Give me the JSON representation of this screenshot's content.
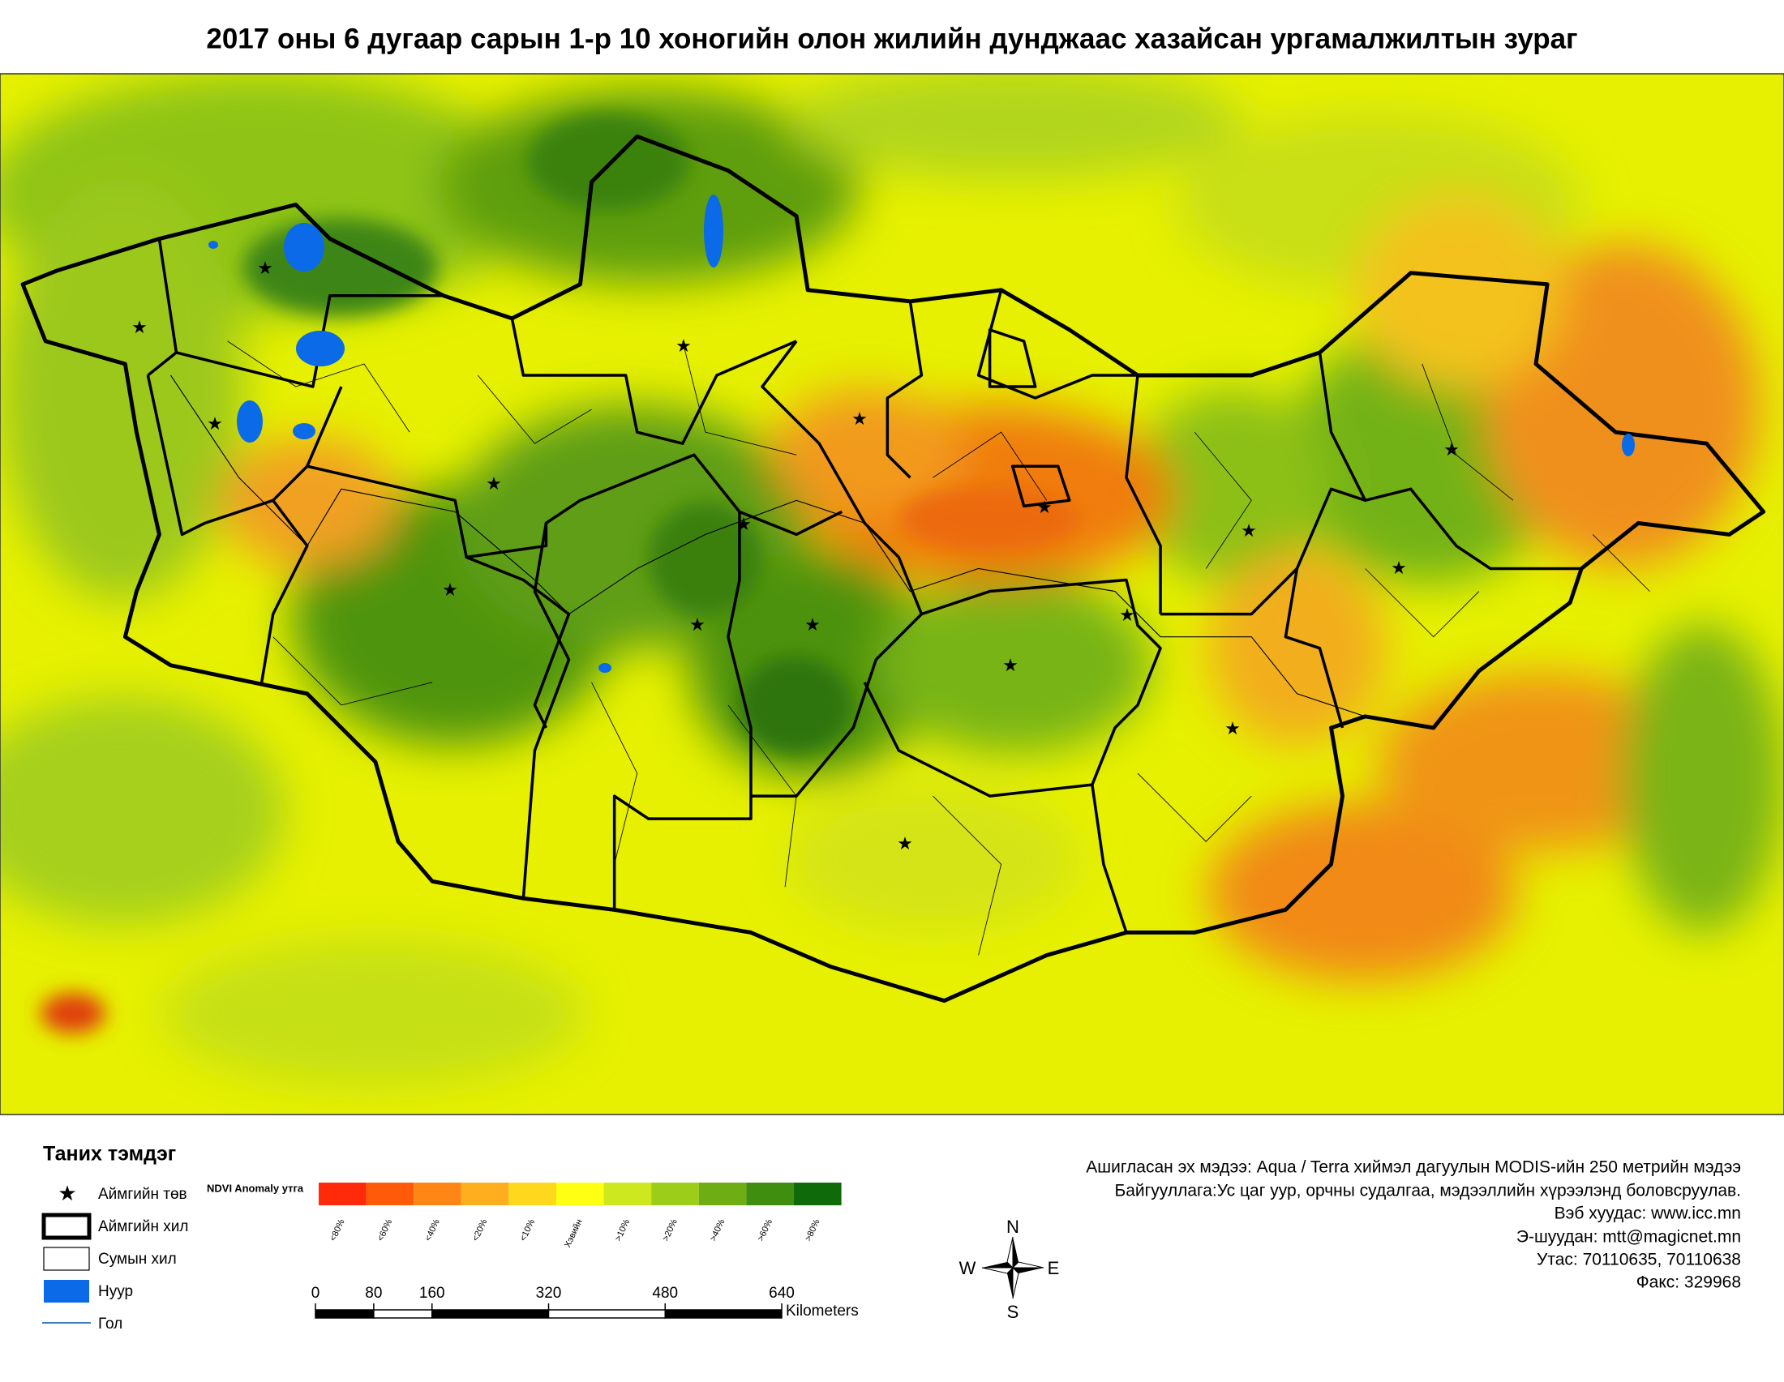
{
  "title": "2017 оны 6 дугаар сарын 1-р 10 хоногийн олон жилийн дунджаас хазайсан ургамалжилтын зураг",
  "legend": {
    "title": "Таних тэмдэг",
    "items": [
      "Аймгийн төв",
      "Аймгийн хил",
      "Сумын хил",
      "Нуур",
      "Гол"
    ]
  },
  "anomaly_scale": {
    "title": "NDVI Anomaly утга",
    "labels": [
      "<80%",
      "<60%",
      "<40%",
      "<20%",
      "<10%",
      "Хэвийн",
      ">10%",
      ">20%",
      ">40%",
      ">60%",
      ">80%"
    ]
  },
  "scale_bar": {
    "ticks": [
      0,
      80,
      160,
      320,
      480,
      640
    ],
    "unit": "Kilometers"
  },
  "compass": {
    "north": "N",
    "south": "S",
    "west": "W",
    "east": "E"
  },
  "info": [
    "Ашигласан эх мэдээ: Aqua / Terra хиймэл дагуулын MODIS-ийн 250 метрийн мэдээ",
    "Байгууллага:Ус цаг уур, орчны судалгаа, мэдээллийн хүрээлэнд боловсруулав.",
    "Вэб хуудас: www.icc.mn",
    "Э-шуудан: mtt@magicnet.mn",
    "Утас: 70110635, 70110638",
    "Факс: 329968"
  ]
}
